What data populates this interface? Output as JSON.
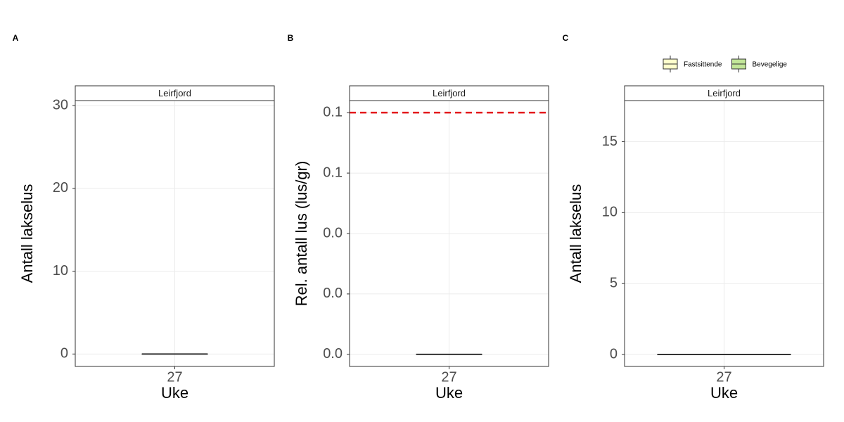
{
  "chart_data": [
    {
      "type": "box",
      "tag": "A",
      "strip": "Leirfjord",
      "xlabel": "Uke",
      "ylabel": "Antall lakselus",
      "categories": [
        "27"
      ],
      "values": [
        0
      ],
      "color": "#ffffff",
      "ylim": [
        -1.5,
        30.6
      ],
      "yticks": [
        0,
        10,
        20,
        30
      ],
      "grid": true
    },
    {
      "type": "box",
      "tag": "B",
      "strip": "Leirfjord",
      "xlabel": "Uke",
      "ylabel": "Rel. antall lus (lus/gr)",
      "categories": [
        "27"
      ],
      "values": [
        0
      ],
      "color": "#ffffff",
      "ylim": [
        -0.005,
        0.105
      ],
      "yticks": [
        {
          "value": 0,
          "label": "0.0"
        },
        {
          "value": 0.025,
          "label": "0.0"
        },
        {
          "value": 0.05,
          "label": "0.0"
        },
        {
          "value": 0.075,
          "label": "0.1"
        },
        {
          "value": 0.1,
          "label": "0.1"
        }
      ],
      "hline": 0.1,
      "hline_color": "#e41a1c",
      "grid": true
    },
    {
      "type": "box",
      "tag": "C",
      "strip": "Leirfjord",
      "xlabel": "Uke",
      "ylabel": "Antall lakselus",
      "categories": [
        "27"
      ],
      "series": [
        {
          "name": "Fastsittende",
          "color": "#ffffcc",
          "values": [
            0
          ]
        },
        {
          "name": "Bevegelige",
          "color": "#c2e699",
          "values": [
            0
          ]
        }
      ],
      "ylim": [
        -0.84,
        17.9
      ],
      "yticks": [
        0,
        5,
        10,
        15
      ],
      "grid": true,
      "legend": "top"
    }
  ]
}
